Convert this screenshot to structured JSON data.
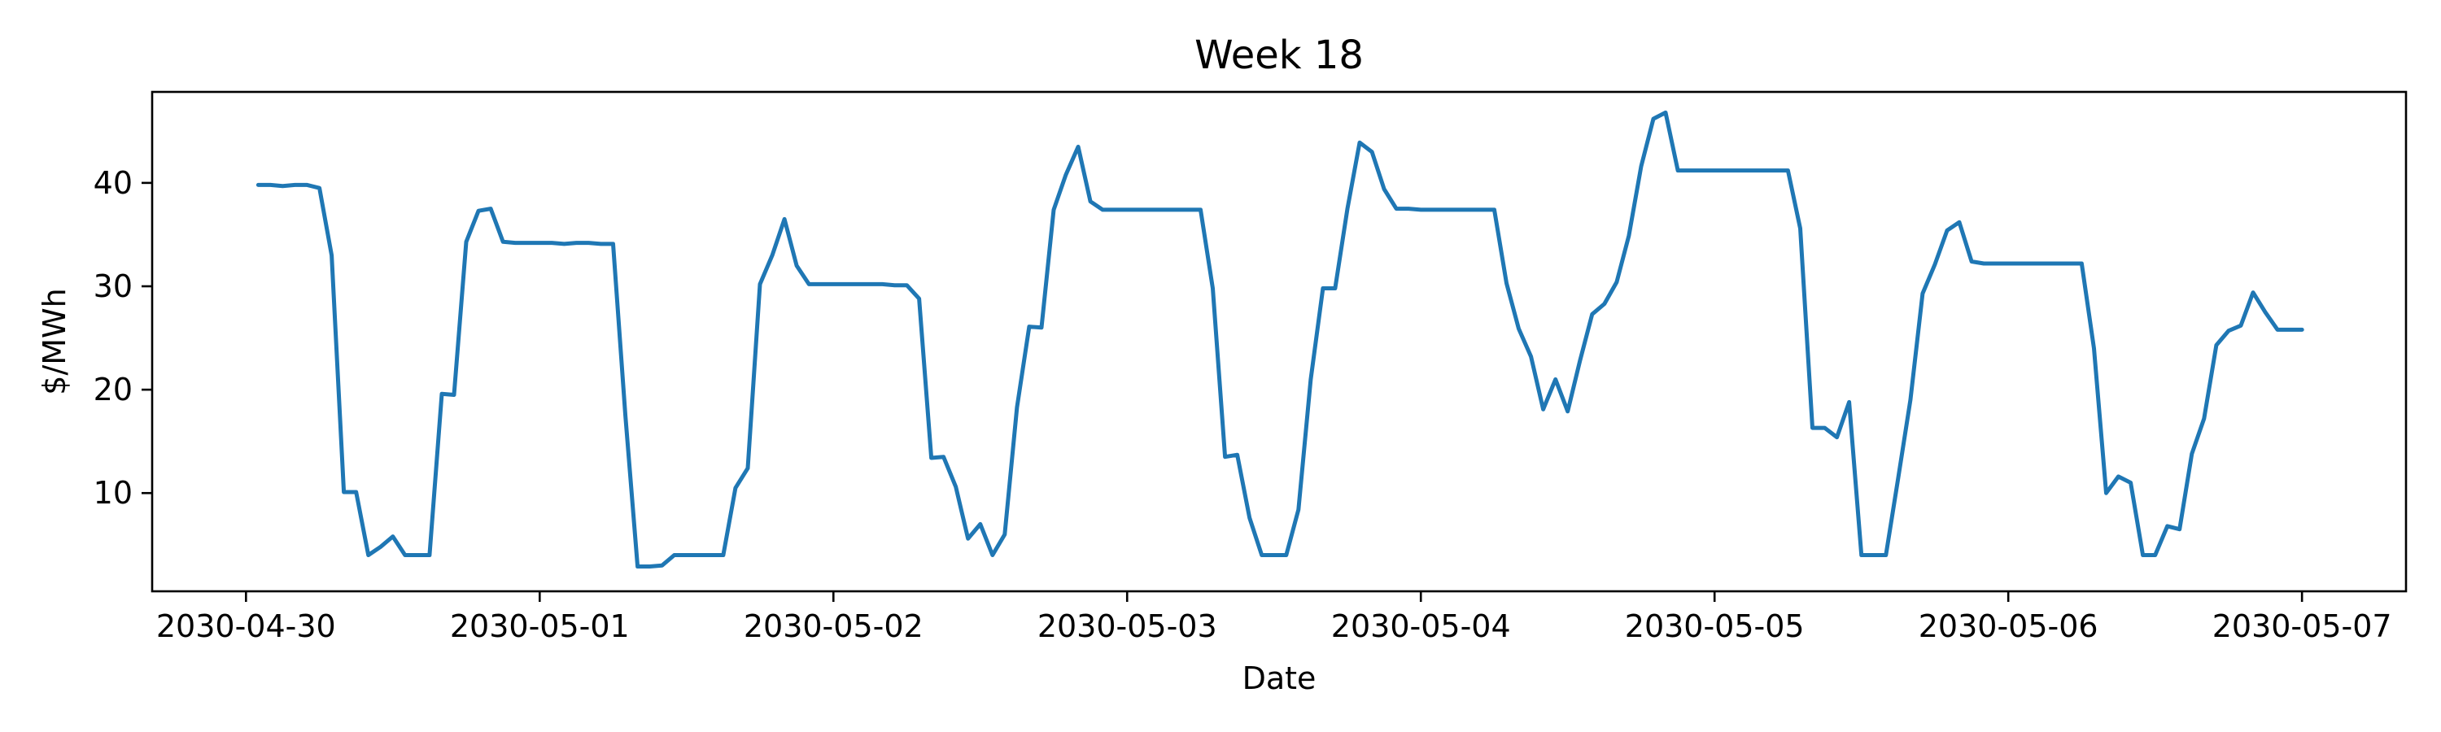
{
  "chart_data": {
    "type": "line",
    "title": "Week 18",
    "xlabel": "Date",
    "ylabel": "$/MWh",
    "x_ticks": [
      "2030-04-30",
      "2030-05-01",
      "2030-05-02",
      "2030-05-03",
      "2030-05-04",
      "2030-05-05",
      "2030-05-06",
      "2030-05-07"
    ],
    "y_ticks": [
      10,
      20,
      30,
      40
    ],
    "xlim": [
      "2030-04-29 16:20",
      "2030-05-07 08:30"
    ],
    "ylim": [
      0.5,
      48.8
    ],
    "grid": false,
    "legend": "none",
    "colors": {
      "series": "#1f77b4"
    },
    "series": [
      {
        "x": [
          "2030-04-30 01:00",
          "2030-04-30 02:00",
          "2030-04-30 03:00",
          "2030-04-30 04:00",
          "2030-04-30 05:00",
          "2030-04-30 06:00",
          "2030-04-30 07:00",
          "2030-04-30 08:00",
          "2030-04-30 09:00",
          "2030-04-30 10:00",
          "2030-04-30 11:00",
          "2030-04-30 12:00",
          "2030-04-30 13:00",
          "2030-04-30 14:00",
          "2030-04-30 15:00",
          "2030-04-30 16:00",
          "2030-04-30 17:00",
          "2030-04-30 18:00",
          "2030-04-30 19:00",
          "2030-04-30 20:00",
          "2030-04-30 21:00",
          "2030-04-30 22:00",
          "2030-04-30 23:00",
          "2030-05-01 00:00",
          "2030-05-01 01:00",
          "2030-05-01 02:00",
          "2030-05-01 03:00",
          "2030-05-01 04:00",
          "2030-05-01 05:00",
          "2030-05-01 06:00",
          "2030-05-01 07:00",
          "2030-05-01 08:00",
          "2030-05-01 09:00",
          "2030-05-01 10:00",
          "2030-05-01 11:00",
          "2030-05-01 12:00",
          "2030-05-01 13:00",
          "2030-05-01 14:00",
          "2030-05-01 15:00",
          "2030-05-01 16:00",
          "2030-05-01 17:00",
          "2030-05-01 18:00",
          "2030-05-01 19:00",
          "2030-05-01 20:00",
          "2030-05-01 21:00",
          "2030-05-01 22:00",
          "2030-05-01 23:00",
          "2030-05-02 00:00",
          "2030-05-02 01:00",
          "2030-05-02 02:00",
          "2030-05-02 03:00",
          "2030-05-02 04:00",
          "2030-05-02 05:00",
          "2030-05-02 06:00",
          "2030-05-02 07:00",
          "2030-05-02 08:00",
          "2030-05-02 09:00",
          "2030-05-02 10:00",
          "2030-05-02 11:00",
          "2030-05-02 12:00",
          "2030-05-02 13:00",
          "2030-05-02 14:00",
          "2030-05-02 15:00",
          "2030-05-02 16:00",
          "2030-05-02 17:00",
          "2030-05-02 18:00",
          "2030-05-02 19:00",
          "2030-05-02 20:00",
          "2030-05-02 21:00",
          "2030-05-02 22:00",
          "2030-05-02 23:00",
          "2030-05-03 00:00",
          "2030-05-03 01:00",
          "2030-05-03 02:00",
          "2030-05-03 03:00",
          "2030-05-03 04:00",
          "2030-05-03 05:00",
          "2030-05-03 06:00",
          "2030-05-03 07:00",
          "2030-05-03 08:00",
          "2030-05-03 09:00",
          "2030-05-03 10:00",
          "2030-05-03 11:00",
          "2030-05-03 12:00",
          "2030-05-03 13:00",
          "2030-05-03 14:00",
          "2030-05-03 15:00",
          "2030-05-03 16:00",
          "2030-05-03 17:00",
          "2030-05-03 18:00",
          "2030-05-03 19:00",
          "2030-05-03 20:00",
          "2030-05-03 21:00",
          "2030-05-03 22:00",
          "2030-05-03 23:00",
          "2030-05-04 00:00",
          "2030-05-04 01:00",
          "2030-05-04 02:00",
          "2030-05-04 03:00",
          "2030-05-04 04:00",
          "2030-05-04 05:00",
          "2030-05-04 06:00",
          "2030-05-04 07:00",
          "2030-05-04 08:00",
          "2030-05-04 09:00",
          "2030-05-04 10:00",
          "2030-05-04 11:00",
          "2030-05-04 12:00",
          "2030-05-04 13:00",
          "2030-05-04 14:00",
          "2030-05-04 15:00",
          "2030-05-04 16:00",
          "2030-05-04 17:00",
          "2030-05-04 18:00",
          "2030-05-04 19:00",
          "2030-05-04 20:00",
          "2030-05-04 21:00",
          "2030-05-04 22:00",
          "2030-05-04 23:00",
          "2030-05-05 00:00",
          "2030-05-05 01:00",
          "2030-05-05 02:00",
          "2030-05-05 03:00",
          "2030-05-05 04:00",
          "2030-05-05 05:00",
          "2030-05-05 06:00",
          "2030-05-05 07:00",
          "2030-05-05 08:00",
          "2030-05-05 09:00",
          "2030-05-05 10:00",
          "2030-05-05 11:00",
          "2030-05-05 12:00",
          "2030-05-05 13:00",
          "2030-05-05 14:00",
          "2030-05-05 15:00",
          "2030-05-05 16:00",
          "2030-05-05 17:00",
          "2030-05-05 18:00",
          "2030-05-05 19:00",
          "2030-05-05 20:00",
          "2030-05-05 21:00",
          "2030-05-05 22:00",
          "2030-05-05 23:00",
          "2030-05-06 00:00",
          "2030-05-06 01:00",
          "2030-05-06 02:00",
          "2030-05-06 03:00",
          "2030-05-06 04:00",
          "2030-05-06 05:00",
          "2030-05-06 06:00",
          "2030-05-06 07:00",
          "2030-05-06 08:00",
          "2030-05-06 09:00",
          "2030-05-06 10:00",
          "2030-05-06 11:00",
          "2030-05-06 12:00",
          "2030-05-06 13:00",
          "2030-05-06 14:00",
          "2030-05-06 15:00",
          "2030-05-06 16:00",
          "2030-05-06 17:00",
          "2030-05-06 18:00",
          "2030-05-06 19:00",
          "2030-05-06 20:00",
          "2030-05-06 21:00",
          "2030-05-06 22:00",
          "2030-05-06 23:00",
          "2030-05-07 00:00"
        ],
        "values": [
          39.8,
          39.8,
          39.7,
          39.8,
          39.8,
          39.5,
          33.0,
          10.1,
          10.1,
          4.0,
          4.8,
          5.8,
          4.0,
          4.0,
          4.0,
          19.6,
          19.5,
          34.3,
          37.3,
          37.5,
          34.3,
          34.2,
          34.2,
          34.2,
          34.2,
          34.1,
          34.2,
          34.2,
          34.1,
          34.1,
          17.5,
          2.9,
          2.9,
          3.0,
          4.0,
          4.0,
          4.0,
          4.0,
          4.0,
          10.5,
          12.4,
          30.2,
          33.0,
          36.5,
          32.0,
          30.2,
          30.2,
          30.2,
          30.2,
          30.2,
          30.2,
          30.2,
          30.1,
          30.1,
          28.8,
          13.4,
          13.5,
          10.6,
          5.6,
          7.0,
          4.0,
          6.0,
          18.3,
          26.1,
          26.0,
          37.4,
          40.8,
          43.5,
          38.2,
          37.4,
          37.4,
          37.4,
          37.4,
          37.4,
          37.4,
          37.4,
          37.4,
          37.4,
          29.8,
          13.5,
          13.7,
          7.6,
          4.0,
          4.0,
          4.0,
          8.4,
          21.0,
          29.8,
          29.8,
          37.5,
          43.9,
          43.0,
          39.4,
          37.5,
          37.5,
          37.4,
          37.4,
          37.4,
          37.4,
          37.4,
          37.4,
          37.4,
          30.3,
          25.9,
          23.2,
          18.1,
          21.0,
          17.9,
          22.8,
          27.3,
          28.3,
          30.4,
          34.9,
          41.6,
          46.2,
          46.8,
          41.2,
          41.2,
          41.2,
          41.2,
          41.2,
          41.2,
          41.2,
          41.2,
          41.2,
          41.2,
          35.6,
          16.3,
          16.3,
          15.4,
          18.8,
          4.0,
          4.0,
          4.0,
          11.4,
          19.0,
          29.3,
          32.1,
          35.4,
          36.2,
          32.4,
          32.2,
          32.2,
          32.2,
          32.2,
          32.2,
          32.2,
          32.2,
          32.2,
          32.2,
          24.0,
          10.0,
          11.6,
          11.0,
          4.0,
          4.0,
          6.8,
          6.5,
          13.8,
          17.2,
          24.3,
          25.7,
          26.2,
          29.4,
          27.5,
          25.8,
          25.8,
          25.8
        ]
      }
    ]
  }
}
